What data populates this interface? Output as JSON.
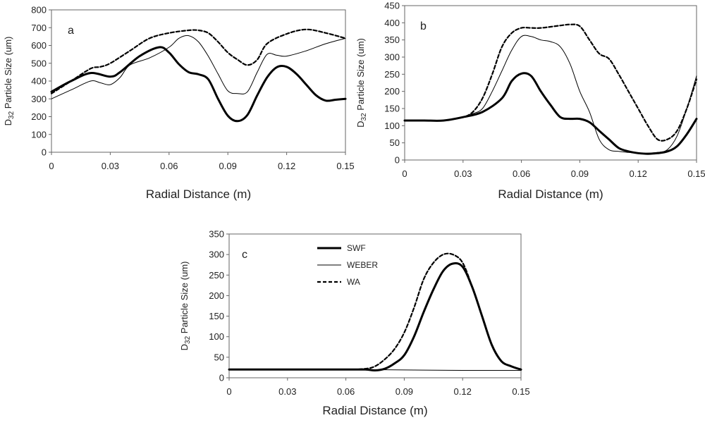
{
  "chart_data": [
    {
      "type": "line",
      "annotation": "a",
      "xlabel": "Radial Distance (m)",
      "ylabel": "D32 Particle Size (um)",
      "xlim": [
        0,
        0.15
      ],
      "ylim": [
        0,
        800
      ],
      "xticks": [
        "0",
        "0.03",
        "0.06",
        "0.09",
        "0.12",
        "0.15"
      ],
      "yticks": [
        "0",
        "100",
        "200",
        "300",
        "400",
        "500",
        "600",
        "700",
        "800"
      ],
      "grid": false,
      "series": [
        {
          "name": "SWF",
          "style": "thick",
          "x": [
            0,
            0.01,
            0.02,
            0.03,
            0.035,
            0.045,
            0.055,
            0.06,
            0.065,
            0.07,
            0.075,
            0.08,
            0.085,
            0.09,
            0.095,
            0.1,
            0.105,
            0.11,
            0.115,
            0.12,
            0.125,
            0.13,
            0.135,
            0.14,
            0.145,
            0.15
          ],
          "y": [
            340,
            400,
            445,
            425,
            450,
            540,
            590,
            560,
            495,
            450,
            438,
            410,
            300,
            205,
            175,
            210,
            320,
            420,
            478,
            480,
            440,
            380,
            320,
            290,
            295,
            300
          ]
        },
        {
          "name": "WEBER",
          "style": "thin",
          "x": [
            0,
            0.01,
            0.02,
            0.025,
            0.03,
            0.035,
            0.04,
            0.05,
            0.06,
            0.065,
            0.07,
            0.075,
            0.08,
            0.085,
            0.09,
            0.095,
            0.1,
            0.105,
            0.11,
            0.115,
            0.12,
            0.13,
            0.14,
            0.15
          ],
          "y": [
            300,
            350,
            400,
            390,
            380,
            420,
            490,
            530,
            590,
            640,
            655,
            620,
            540,
            440,
            345,
            330,
            340,
            450,
            550,
            545,
            540,
            570,
            610,
            640
          ]
        },
        {
          "name": "WA",
          "style": "dashed",
          "x": [
            0,
            0.01,
            0.02,
            0.025,
            0.03,
            0.04,
            0.05,
            0.06,
            0.07,
            0.075,
            0.08,
            0.085,
            0.09,
            0.095,
            0.1,
            0.105,
            0.11,
            0.12,
            0.13,
            0.14,
            0.15
          ],
          "y": [
            330,
            400,
            470,
            480,
            500,
            570,
            640,
            670,
            685,
            685,
            670,
            620,
            560,
            520,
            490,
            520,
            610,
            665,
            690,
            670,
            640
          ]
        }
      ]
    },
    {
      "type": "line",
      "annotation": "b",
      "xlabel": "Radial Distance (m)",
      "ylabel": "D32 Particle Size (um)",
      "xlim": [
        0,
        0.15
      ],
      "ylim": [
        0,
        450
      ],
      "xticks": [
        "0",
        "0.03",
        "0.06",
        "0.09",
        "0.12",
        "0.15"
      ],
      "yticks": [
        "0",
        "50",
        "100",
        "150",
        "200",
        "250",
        "300",
        "350",
        "400",
        "450"
      ],
      "grid": false,
      "series": [
        {
          "name": "SWF",
          "style": "thick",
          "x": [
            0,
            0.01,
            0.02,
            0.03,
            0.04,
            0.05,
            0.055,
            0.06,
            0.065,
            0.07,
            0.075,
            0.08,
            0.085,
            0.09,
            0.095,
            0.1,
            0.105,
            0.11,
            0.115,
            0.12,
            0.125,
            0.13,
            0.135,
            0.14,
            0.145,
            0.15
          ],
          "y": [
            115,
            115,
            115,
            125,
            140,
            180,
            230,
            252,
            245,
            200,
            160,
            125,
            120,
            120,
            110,
            85,
            60,
            35,
            25,
            20,
            18,
            20,
            25,
            40,
            75,
            120
          ]
        },
        {
          "name": "WEBER",
          "style": "thin",
          "x": [
            0,
            0.01,
            0.02,
            0.03,
            0.035,
            0.04,
            0.045,
            0.05,
            0.055,
            0.06,
            0.065,
            0.07,
            0.075,
            0.08,
            0.085,
            0.09,
            0.095,
            0.1,
            0.105,
            0.11,
            0.115,
            0.12,
            0.125,
            0.13,
            0.135,
            0.14,
            0.145,
            0.15
          ],
          "y": [
            115,
            115,
            115,
            125,
            135,
            150,
            200,
            260,
            320,
            360,
            360,
            350,
            345,
            330,
            280,
            200,
            140,
            60,
            30,
            25,
            22,
            20,
            20,
            22,
            30,
            70,
            150,
            245
          ]
        },
        {
          "name": "WA",
          "style": "dashed",
          "x": [
            0,
            0.01,
            0.02,
            0.03,
            0.035,
            0.04,
            0.045,
            0.05,
            0.055,
            0.06,
            0.065,
            0.07,
            0.08,
            0.085,
            0.09,
            0.095,
            0.1,
            0.105,
            0.11,
            0.115,
            0.12,
            0.125,
            0.13,
            0.135,
            0.14,
            0.145,
            0.15
          ],
          "y": [
            115,
            115,
            115,
            125,
            140,
            180,
            250,
            330,
            370,
            385,
            385,
            385,
            392,
            395,
            390,
            350,
            310,
            295,
            250,
            200,
            150,
            100,
            60,
            60,
            85,
            150,
            235
          ]
        }
      ]
    },
    {
      "type": "line",
      "annotation": "c",
      "xlabel": "Radial Distance (m)",
      "ylabel": "D32 Particle Size (um)",
      "xlim": [
        0,
        0.15
      ],
      "ylim": [
        0,
        350
      ],
      "xticks": [
        "0",
        "0.03",
        "0.06",
        "0.09",
        "0.12",
        "0.15"
      ],
      "yticks": [
        "0",
        "50",
        "100",
        "150",
        "200",
        "250",
        "300",
        "350"
      ],
      "grid": false,
      "legend": {
        "placement": "top-left",
        "entries": [
          "SWF",
          "WEBER",
          "WA"
        ]
      },
      "series": [
        {
          "name": "SWF",
          "style": "thick",
          "x": [
            0,
            0.03,
            0.06,
            0.07,
            0.075,
            0.08,
            0.085,
            0.09,
            0.095,
            0.1,
            0.105,
            0.11,
            0.115,
            0.12,
            0.125,
            0.13,
            0.135,
            0.14,
            0.145,
            0.15
          ],
          "y": [
            20,
            20,
            20,
            20,
            18,
            22,
            35,
            55,
            100,
            160,
            215,
            260,
            278,
            270,
            220,
            150,
            80,
            40,
            28,
            20
          ]
        },
        {
          "name": "WEBER",
          "style": "thin",
          "x": [
            0,
            0.03,
            0.06,
            0.09,
            0.12,
            0.15
          ],
          "y": [
            20,
            20,
            20,
            19,
            18,
            18
          ]
        },
        {
          "name": "WA",
          "style": "dashed",
          "x": [
            0,
            0.03,
            0.06,
            0.07,
            0.075,
            0.08,
            0.085,
            0.09,
            0.095,
            0.1,
            0.105,
            0.11,
            0.115,
            0.12,
            0.125,
            0.13,
            0.135,
            0.14,
            0.145,
            0.15
          ],
          "y": [
            20,
            20,
            20,
            22,
            28,
            45,
            70,
            110,
            170,
            240,
            280,
            300,
            300,
            280,
            220,
            150,
            80,
            40,
            28,
            20
          ]
        }
      ]
    }
  ]
}
